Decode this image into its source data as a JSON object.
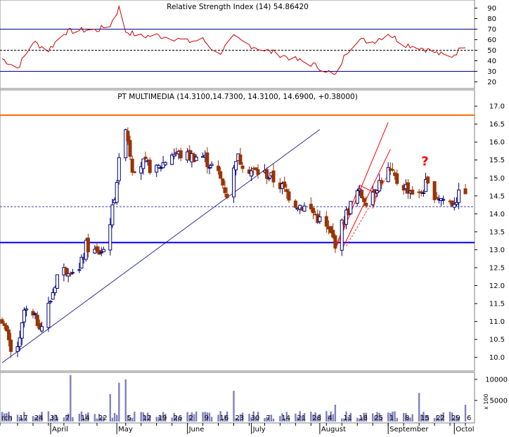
{
  "rsi_panel": {
    "title": "Relative Strength Index (14) 54.86420",
    "overbought": 70,
    "oversold": 30,
    "midline": 50,
    "ylim": [
      15,
      95
    ],
    "tick_labels": [
      "90",
      "80",
      "70",
      "60",
      "50",
      "40",
      "30",
      "20"
    ]
  },
  "price_panel": {
    "title": "PT MULTIMEDIA (14.3100,14.7300, 14.3100, 14.6900, +0.38000)",
    "ylim": [
      9.7,
      17.1
    ],
    "tick_labels": [
      "17.0",
      "16.5",
      "16.0",
      "15.5",
      "15.0",
      "14.5",
      "14.0",
      "13.5",
      "13.0",
      "12.5",
      "12.0",
      "11.5",
      "11.0",
      "10.5",
      "10.0"
    ],
    "resistance_level": 16.75,
    "support_level": 13.2,
    "reference_level": 14.2,
    "annotation": "?",
    "colors": {
      "resistance": "#ff6a00",
      "support": "#0000ff",
      "up": "#000080",
      "down": "#993300",
      "channel": "#ff0000",
      "trendline": "#000080"
    }
  },
  "volume_panel": {
    "ylim": [
      0,
      11000
    ],
    "tick_labels": [
      "10000",
      "5000"
    ],
    "scale_label": "x 100"
  },
  "x_axis": {
    "day_labels": [
      "rch",
      "17",
      "24",
      "31",
      "7",
      "14",
      "22",
      "5",
      "12",
      "19",
      "26",
      "2",
      "9",
      "16",
      "23",
      "30",
      "7",
      "14",
      "21",
      "28",
      "4",
      "11",
      "18",
      "25",
      "1",
      "8",
      "15",
      "22",
      "29",
      "6"
    ],
    "month_labels": [
      "April",
      "May",
      "June",
      "July",
      "August",
      "September",
      "Octol"
    ]
  },
  "chart_data": {
    "type": "candlestick",
    "title": "PT MULTIMEDIA (14.3100,14.7300, 14.3100, 14.6900, +0.38000)",
    "x_start": "2003-03-10",
    "x_end": "2003-10-06",
    "price_series": [
      {
        "date": "2003-03-10",
        "close": 11.1
      },
      {
        "date": "2003-03-14",
        "close": 10.1
      },
      {
        "date": "2003-03-18",
        "close": 10.4
      },
      {
        "date": "2003-03-20",
        "close": 11.3
      },
      {
        "date": "2003-03-24",
        "close": 11.1
      },
      {
        "date": "2003-03-28",
        "close": 10.9
      },
      {
        "date": "2003-04-01",
        "close": 11.6
      },
      {
        "date": "2003-04-04",
        "close": 12.3
      },
      {
        "date": "2003-04-09",
        "close": 12.5
      },
      {
        "date": "2003-04-14",
        "close": 12.4
      },
      {
        "date": "2003-04-17",
        "close": 13.1
      },
      {
        "date": "2003-04-22",
        "close": 12.9
      },
      {
        "date": "2003-04-25",
        "close": 13.0
      },
      {
        "date": "2003-04-29",
        "close": 14.1
      },
      {
        "date": "2003-05-02",
        "close": 15.4
      },
      {
        "date": "2003-05-05",
        "close": 16.5
      },
      {
        "date": "2003-05-08",
        "close": 15.3
      },
      {
        "date": "2003-05-13",
        "close": 15.4
      },
      {
        "date": "2003-05-19",
        "close": 15.2
      },
      {
        "date": "2003-05-26",
        "close": 15.7
      },
      {
        "date": "2003-06-02",
        "close": 15.6
      },
      {
        "date": "2003-06-09",
        "close": 15.6
      },
      {
        "date": "2003-06-16",
        "close": 15.1
      },
      {
        "date": "2003-06-21",
        "close": 14.4
      },
      {
        "date": "2003-06-24",
        "close": 15.6
      },
      {
        "date": "2003-07-01",
        "close": 15.2
      },
      {
        "date": "2003-07-08",
        "close": 15.1
      },
      {
        "date": "2003-07-14",
        "close": 14.8
      },
      {
        "date": "2003-07-21",
        "close": 14.3
      },
      {
        "date": "2003-07-28",
        "close": 14.1
      },
      {
        "date": "2003-08-04",
        "close": 13.6
      },
      {
        "date": "2003-08-08",
        "close": 13.2
      },
      {
        "date": "2003-08-13",
        "close": 14.0
      },
      {
        "date": "2003-08-18",
        "close": 14.6
      },
      {
        "date": "2003-08-22",
        "close": 14.4
      },
      {
        "date": "2003-08-27",
        "close": 14.8
      },
      {
        "date": "2003-09-01",
        "close": 15.2
      },
      {
        "date": "2003-09-05",
        "close": 14.9
      },
      {
        "date": "2003-09-10",
        "close": 14.7
      },
      {
        "date": "2003-09-15",
        "close": 14.5
      },
      {
        "date": "2003-09-18",
        "close": 14.8
      },
      {
        "date": "2003-09-23",
        "close": 14.5
      },
      {
        "date": "2003-09-26",
        "close": 14.4
      },
      {
        "date": "2003-09-30",
        "close": 14.3
      },
      {
        "date": "2003-10-06",
        "close": 14.69
      }
    ],
    "rsi_series": [
      {
        "date": "2003-03-10",
        "value": 42
      },
      {
        "date": "2003-03-17",
        "value": 33
      },
      {
        "date": "2003-03-24",
        "value": 58
      },
      {
        "date": "2003-03-31",
        "value": 50
      },
      {
        "date": "2003-04-07",
        "value": 67
      },
      {
        "date": "2003-04-14",
        "value": 69
      },
      {
        "date": "2003-04-22",
        "value": 69
      },
      {
        "date": "2003-04-28",
        "value": 74
      },
      {
        "date": "2003-05-02",
        "value": 90
      },
      {
        "date": "2003-05-05",
        "value": 68
      },
      {
        "date": "2003-05-12",
        "value": 63
      },
      {
        "date": "2003-05-19",
        "value": 64
      },
      {
        "date": "2003-05-26",
        "value": 62
      },
      {
        "date": "2003-06-02",
        "value": 58
      },
      {
        "date": "2003-06-09",
        "value": 60
      },
      {
        "date": "2003-06-16",
        "value": 46
      },
      {
        "date": "2003-06-23",
        "value": 62
      },
      {
        "date": "2003-06-30",
        "value": 55
      },
      {
        "date": "2003-07-07",
        "value": 50
      },
      {
        "date": "2003-07-14",
        "value": 46
      },
      {
        "date": "2003-07-21",
        "value": 41
      },
      {
        "date": "2003-07-28",
        "value": 37
      },
      {
        "date": "2003-08-04",
        "value": 31
      },
      {
        "date": "2003-08-08",
        "value": 25
      },
      {
        "date": "2003-08-13",
        "value": 48
      },
      {
        "date": "2003-08-18",
        "value": 60
      },
      {
        "date": "2003-08-25",
        "value": 58
      },
      {
        "date": "2003-09-01",
        "value": 66
      },
      {
        "date": "2003-09-08",
        "value": 56
      },
      {
        "date": "2003-09-15",
        "value": 53
      },
      {
        "date": "2003-09-22",
        "value": 48
      },
      {
        "date": "2003-09-29",
        "value": 43
      },
      {
        "date": "2003-10-06",
        "value": 54.86
      }
    ],
    "volume_series": [
      {
        "date": "2003-03-21",
        "value": 900
      },
      {
        "date": "2003-04-10",
        "value": 11000
      },
      {
        "date": "2003-04-28",
        "value": 6500
      },
      {
        "date": "2003-05-02",
        "value": 9200
      },
      {
        "date": "2003-05-05",
        "value": 10000
      },
      {
        "date": "2003-06-23",
        "value": 7300
      },
      {
        "date": "2003-08-08",
        "value": 4000
      },
      {
        "date": "2003-09-15",
        "value": 6800
      },
      {
        "date": "2003-10-06",
        "value": 4000
      }
    ]
  }
}
